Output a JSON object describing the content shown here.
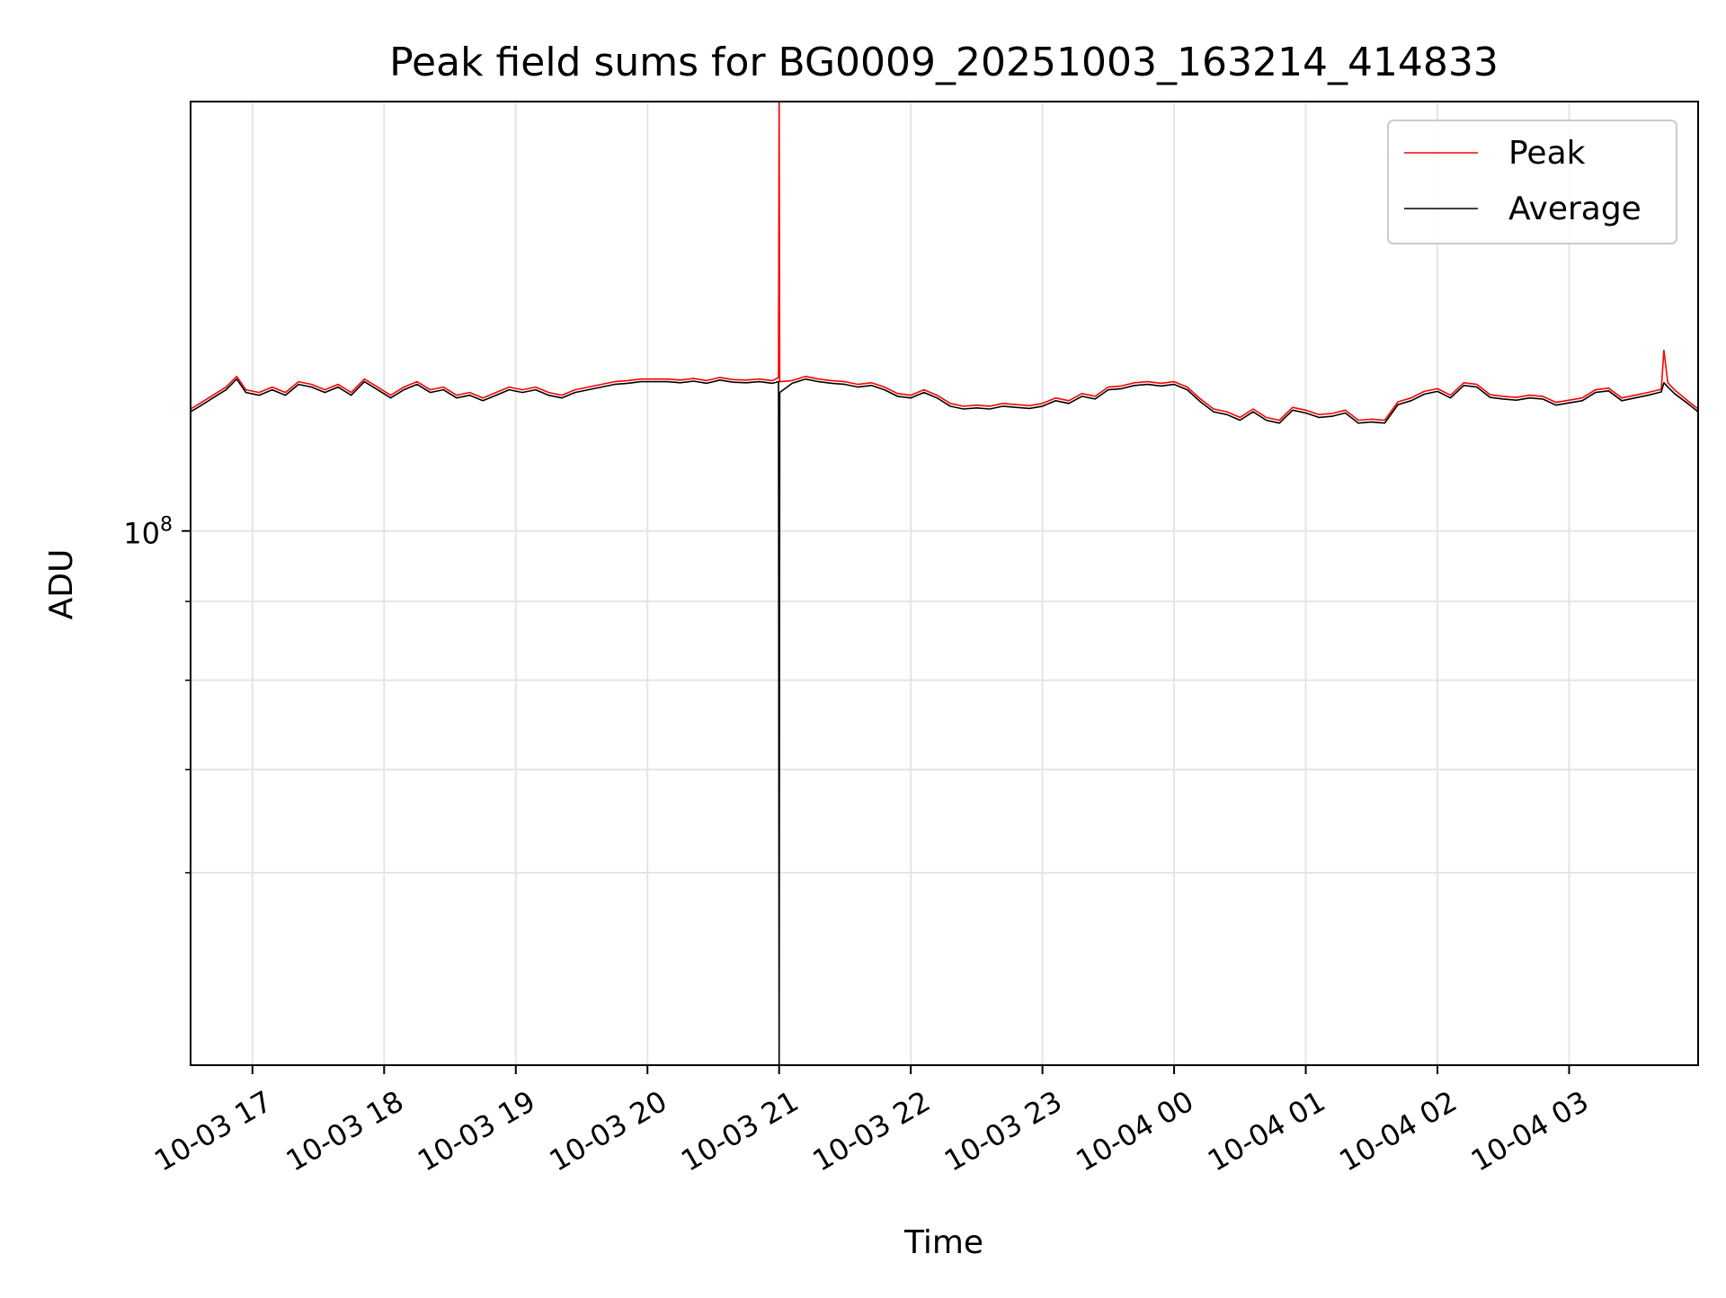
{
  "chart_data": {
    "type": "line",
    "title": "Peak field sums for BG0009_20251003_163214_414833",
    "xlabel": "Time",
    "ylabel": "ADU",
    "yscale": "log",
    "ylim": [
      45000000,
      190000000
    ],
    "xlim_hours": [
      16.53,
      27.98
    ],
    "grid": true,
    "legend_position": "top-right",
    "x_ticks": [
      {
        "hour": 17,
        "label": "10-03 17"
      },
      {
        "hour": 18,
        "label": "10-03 18"
      },
      {
        "hour": 19,
        "label": "10-03 19"
      },
      {
        "hour": 20,
        "label": "10-03 20"
      },
      {
        "hour": 21,
        "label": "10-03 21"
      },
      {
        "hour": 22,
        "label": "10-03 22"
      },
      {
        "hour": 23,
        "label": "10-03 23"
      },
      {
        "hour": 24,
        "label": "10-04 00"
      },
      {
        "hour": 25,
        "label": "10-04 01"
      },
      {
        "hour": 26,
        "label": "10-04 02"
      },
      {
        "hour": 27,
        "label": "10-04 03"
      }
    ],
    "y_major_ticks": [
      {
        "value": 100000000,
        "base": "10",
        "exponent": "8"
      }
    ],
    "y_minor_ticks": [
      90000000,
      80000000,
      70000000,
      60000000
    ],
    "series": [
      {
        "name": "Peak",
        "color": "#ff0000",
        "x_hours": [
          16.53,
          16.6,
          16.7,
          16.8,
          16.88,
          16.95,
          17.05,
          17.15,
          17.25,
          17.35,
          17.45,
          17.55,
          17.65,
          17.75,
          17.85,
          17.95,
          18.05,
          18.15,
          18.25,
          18.35,
          18.45,
          18.55,
          18.65,
          18.75,
          18.85,
          18.95,
          19.05,
          19.15,
          19.25,
          19.35,
          19.45,
          19.55,
          19.65,
          19.75,
          19.85,
          19.95,
          20.05,
          20.15,
          20.25,
          20.35,
          20.45,
          20.55,
          20.65,
          20.75,
          20.85,
          20.95,
          20.995,
          21.0,
          21.005,
          21.1,
          21.2,
          21.3,
          21.4,
          21.5,
          21.6,
          21.7,
          21.8,
          21.9,
          22.0,
          22.1,
          22.2,
          22.3,
          22.4,
          22.5,
          22.6,
          22.7,
          22.8,
          22.9,
          23.0,
          23.1,
          23.2,
          23.3,
          23.4,
          23.5,
          23.6,
          23.7,
          23.8,
          23.9,
          24.0,
          24.1,
          24.2,
          24.3,
          24.4,
          24.5,
          24.6,
          24.7,
          24.8,
          24.9,
          25.0,
          25.1,
          25.2,
          25.3,
          25.4,
          25.5,
          25.6,
          25.7,
          25.8,
          25.9,
          26.0,
          26.1,
          26.2,
          26.3,
          26.4,
          26.5,
          26.6,
          26.7,
          26.8,
          26.9,
          27.0,
          27.1,
          27.2,
          27.3,
          27.4,
          27.5,
          27.6,
          27.7,
          27.72,
          27.75,
          27.8,
          27.9,
          27.98
        ],
        "values": [
          120000000,
          121000000,
          122500000,
          124000000,
          126000000,
          123500000,
          123000000,
          124000000,
          123000000,
          125000000,
          124500000,
          123500000,
          124500000,
          123000000,
          125500000,
          124000000,
          122500000,
          124000000,
          125000000,
          123500000,
          124000000,
          122500000,
          123000000,
          122000000,
          123000000,
          124000000,
          123500000,
          124000000,
          123000000,
          122500000,
          123500000,
          124000000,
          124500000,
          125000000,
          125200000,
          125500000,
          125500000,
          125500000,
          125300000,
          125600000,
          125200000,
          125800000,
          125400000,
          125300000,
          125500000,
          125200000,
          125800000,
          190000000,
          125000000,
          125200000,
          126000000,
          125500000,
          125200000,
          125000000,
          124500000,
          124800000,
          124000000,
          122800000,
          122500000,
          123500000,
          122500000,
          121000000,
          120500000,
          120700000,
          120500000,
          121000000,
          120800000,
          120600000,
          121000000,
          122000000,
          121500000,
          122800000,
          122300000,
          124000000,
          124200000,
          124800000,
          125000000,
          124700000,
          125000000,
          124000000,
          121800000,
          120000000,
          119500000,
          118500000,
          120000000,
          118500000,
          118000000,
          120300000,
          119800000,
          119000000,
          119200000,
          119800000,
          118000000,
          118200000,
          118000000,
          121300000,
          122000000,
          123200000,
          123700000,
          122500000,
          124800000,
          124500000,
          122600000,
          122300000,
          122100000,
          122500000,
          122300000,
          121200000,
          121600000,
          122000000,
          123500000,
          123800000,
          122000000,
          122500000,
          123000000,
          123600000,
          131000000,
          124800000,
          123500000,
          121500000,
          120000000
        ]
      },
      {
        "name": "Average",
        "color": "#000000",
        "x_hours": [
          16.53,
          16.6,
          16.7,
          16.8,
          16.88,
          16.95,
          17.05,
          17.15,
          17.25,
          17.35,
          17.45,
          17.55,
          17.65,
          17.75,
          17.85,
          17.95,
          18.05,
          18.15,
          18.25,
          18.35,
          18.45,
          18.55,
          18.65,
          18.75,
          18.85,
          18.95,
          19.05,
          19.15,
          19.25,
          19.35,
          19.45,
          19.55,
          19.65,
          19.75,
          19.85,
          19.95,
          20.05,
          20.15,
          20.25,
          20.35,
          20.45,
          20.55,
          20.65,
          20.75,
          20.85,
          20.95,
          20.995,
          21.0,
          21.005,
          21.1,
          21.2,
          21.3,
          21.4,
          21.5,
          21.6,
          21.7,
          21.8,
          21.9,
          22.0,
          22.1,
          22.2,
          22.3,
          22.4,
          22.5,
          22.6,
          22.7,
          22.8,
          22.9,
          23.0,
          23.1,
          23.2,
          23.3,
          23.4,
          23.5,
          23.6,
          23.7,
          23.8,
          23.9,
          24.0,
          24.1,
          24.2,
          24.3,
          24.4,
          24.5,
          24.6,
          24.7,
          24.8,
          24.9,
          25.0,
          25.1,
          25.2,
          25.3,
          25.4,
          25.5,
          25.6,
          25.7,
          25.8,
          25.9,
          26.0,
          26.1,
          26.2,
          26.3,
          26.4,
          26.5,
          26.6,
          26.7,
          26.8,
          26.9,
          27.0,
          27.1,
          27.2,
          27.3,
          27.4,
          27.5,
          27.6,
          27.7,
          27.72,
          27.75,
          27.8,
          27.9,
          27.98
        ],
        "values": [
          119500000,
          120500000,
          122000000,
          123500000,
          125500000,
          123000000,
          122500000,
          123500000,
          122500000,
          124500000,
          124000000,
          123000000,
          124000000,
          122500000,
          125000000,
          123500000,
          122000000,
          123500000,
          124500000,
          123000000,
          123500000,
          122000000,
          122500000,
          121500000,
          122500000,
          123500000,
          123000000,
          123500000,
          122500000,
          122000000,
          123000000,
          123500000,
          124000000,
          124500000,
          124700000,
          125000000,
          125000000,
          125000000,
          124800000,
          125100000,
          124700000,
          125300000,
          124900000,
          124800000,
          125000000,
          124700000,
          125000000,
          45000000,
          123000000,
          124700000,
          125500000,
          125000000,
          124700000,
          124500000,
          124000000,
          124300000,
          123500000,
          122300000,
          122000000,
          123000000,
          122000000,
          120500000,
          120000000,
          120200000,
          120000000,
          120500000,
          120300000,
          120100000,
          120500000,
          121500000,
          121000000,
          122300000,
          121800000,
          123500000,
          123700000,
          124300000,
          124500000,
          124200000,
          124500000,
          123500000,
          121300000,
          119500000,
          119000000,
          118000000,
          119500000,
          118000000,
          117500000,
          119800000,
          119300000,
          118500000,
          118700000,
          119300000,
          117500000,
          117700000,
          117500000,
          120800000,
          121500000,
          122700000,
          123200000,
          122000000,
          124300000,
          124000000,
          122100000,
          121800000,
          121600000,
          122000000,
          121800000,
          120700000,
          121100000,
          121500000,
          123000000,
          123300000,
          121500000,
          122000000,
          122500000,
          123100000,
          124800000,
          124000000,
          122800000,
          121000000,
          119500000
        ]
      }
    ]
  }
}
